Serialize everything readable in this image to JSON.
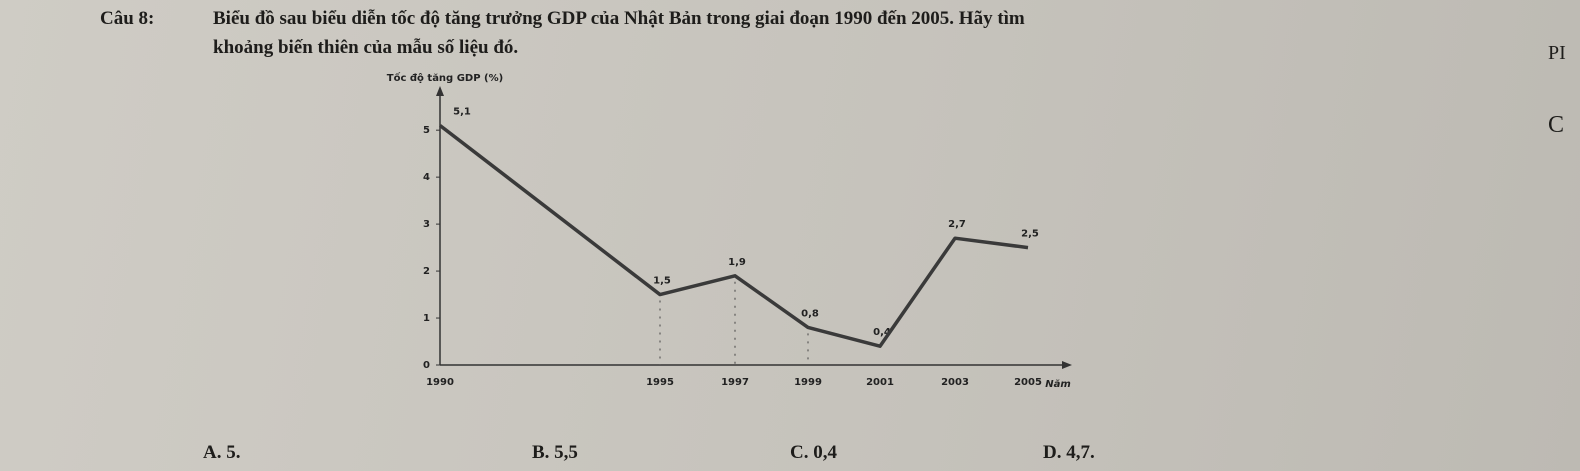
{
  "question": {
    "label": "Câu 8:",
    "text_line1": "Biểu đồ sau biểu diễn tốc độ tăng trưởng GDP của Nhật Bản trong giai đoạn 1990 đến 2005. Hãy tìm",
    "text_line2": "khoảng biến thiên của mẫu số liệu đó."
  },
  "side_text": [
    "PI",
    "C"
  ],
  "chart": {
    "type": "line",
    "y_label": "Tốc độ tăng GDP (%)",
    "x_label": "Năm",
    "categories": [
      "1990",
      "1995",
      "1997",
      "1999",
      "2001",
      "2003",
      "2005"
    ],
    "values": [
      5.1,
      1.5,
      1.9,
      0.8,
      0.4,
      2.7,
      2.5
    ],
    "value_labels": [
      "5,1",
      "1,5",
      "1,9",
      "0,8",
      "0,4",
      "2,7",
      "2,5"
    ],
    "color": "#3a3a3a",
    "ylim": [
      0,
      5.6
    ],
    "yticks": [
      0,
      1,
      2,
      3,
      4,
      5
    ]
  },
  "options": [
    "A. 5.",
    "B. 5,5",
    "C. 0,4",
    "D. 4,7."
  ]
}
